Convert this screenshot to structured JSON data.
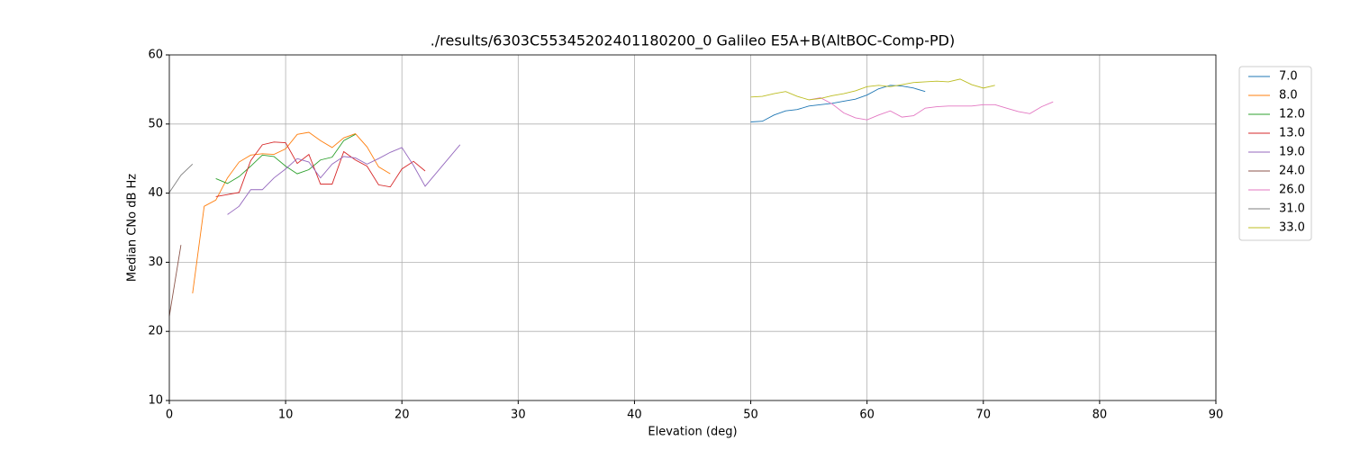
{
  "chart_data": {
    "type": "line",
    "title": "./results/6303C55345202401180200_0 Galileo E5A+B(AltBOC-Comp-PD)",
    "xlabel": "Elevation (deg)",
    "ylabel": "Median CNo dB Hz",
    "xlim": [
      0,
      90
    ],
    "xticks": [
      0,
      10,
      20,
      30,
      40,
      50,
      60,
      70,
      80,
      90
    ],
    "ylim": [
      10,
      60
    ],
    "yticks": [
      10,
      20,
      30,
      40,
      50,
      60
    ],
    "grid": true,
    "legend": "upper right outside",
    "series": [
      {
        "name": "7.0",
        "color": "#1f77b4",
        "x": [
          50,
          51,
          52,
          53,
          54,
          55,
          56,
          57,
          58,
          59,
          60,
          61,
          62,
          63,
          64,
          65
        ],
        "values": [
          50.3,
          50.4,
          51.3,
          51.9,
          52.1,
          52.6,
          52.8,
          53.0,
          53.3,
          53.6,
          54.2,
          55.1,
          55.6,
          55.5,
          55.2,
          54.7
        ]
      },
      {
        "name": "8.0",
        "color": "#ff7f0e",
        "x": [
          2,
          3,
          4,
          5,
          6,
          7,
          8,
          9,
          10,
          11,
          12,
          13,
          14,
          15,
          16,
          17,
          18,
          19
        ],
        "values": [
          25.5,
          38.1,
          39.0,
          42.2,
          44.5,
          45.5,
          45.7,
          45.6,
          46.4,
          48.5,
          48.8,
          47.6,
          46.6,
          48.0,
          48.6,
          46.7,
          43.8,
          42.8
        ]
      },
      {
        "name": "12.0",
        "color": "#2ca02c",
        "x": [
          4,
          5,
          6,
          7,
          8,
          9,
          10,
          11,
          12,
          13,
          14,
          15,
          16
        ],
        "values": [
          42.1,
          41.4,
          42.4,
          43.9,
          45.5,
          45.3,
          43.9,
          42.8,
          43.4,
          44.8,
          45.2,
          47.6,
          48.5
        ]
      },
      {
        "name": "13.0",
        "color": "#d62728",
        "x": [
          4,
          5,
          6,
          7,
          8,
          9,
          10,
          11,
          12,
          13,
          14,
          15,
          16,
          17,
          18,
          19,
          20,
          21,
          22
        ],
        "values": [
          39.5,
          39.8,
          40.1,
          44.7,
          47.0,
          47.4,
          47.3,
          44.3,
          45.6,
          41.3,
          41.3,
          46.0,
          44.8,
          43.9,
          41.2,
          40.9,
          43.5,
          44.6,
          43.2
        ]
      },
      {
        "name": "19.0",
        "color": "#9467bd",
        "x": [
          5,
          6,
          7,
          8,
          9,
          10,
          11,
          12,
          13,
          14,
          15,
          16,
          17,
          18,
          19,
          20,
          21,
          22,
          23,
          24,
          25
        ],
        "values": [
          36.9,
          38.1,
          40.5,
          40.5,
          42.2,
          43.5,
          45.0,
          44.5,
          42.2,
          44.2,
          45.3,
          45.1,
          44.2,
          45.0,
          45.9,
          46.6,
          44.0,
          41.0,
          43.0,
          45.0,
          47.0
        ]
      },
      {
        "name": "24.0",
        "color": "#8c564b",
        "x": [
          0,
          1
        ],
        "values": [
          22.2,
          32.5
        ]
      },
      {
        "name": "26.0",
        "color": "#e377c2",
        "x": [
          55,
          56,
          57,
          58,
          59,
          60,
          61,
          62,
          63,
          64,
          65,
          66,
          67,
          68,
          69,
          70,
          71,
          72,
          73,
          74,
          75,
          76
        ],
        "values": [
          53.5,
          53.8,
          52.9,
          51.6,
          50.9,
          50.6,
          51.3,
          51.9,
          51.0,
          51.2,
          52.3,
          52.5,
          52.6,
          52.6,
          52.6,
          52.8,
          52.8,
          52.3,
          51.8,
          51.5,
          52.5,
          53.2
        ]
      },
      {
        "name": "31.0",
        "color": "#7f7f7f",
        "x": [
          0,
          1,
          2
        ],
        "values": [
          40.1,
          42.6,
          44.2
        ]
      },
      {
        "name": "33.0",
        "color": "#bcbd22",
        "x": [
          50,
          51,
          52,
          53,
          54,
          55,
          56,
          57,
          58,
          59,
          60,
          61,
          62,
          63,
          64,
          65,
          66,
          67,
          68,
          69,
          70,
          71
        ],
        "values": [
          53.9,
          54.0,
          54.4,
          54.7,
          54.0,
          53.5,
          53.7,
          54.1,
          54.4,
          54.8,
          55.4,
          55.6,
          55.4,
          55.7,
          56.0,
          56.1,
          56.2,
          56.1,
          56.5,
          55.7,
          55.2,
          55.6
        ]
      }
    ]
  }
}
